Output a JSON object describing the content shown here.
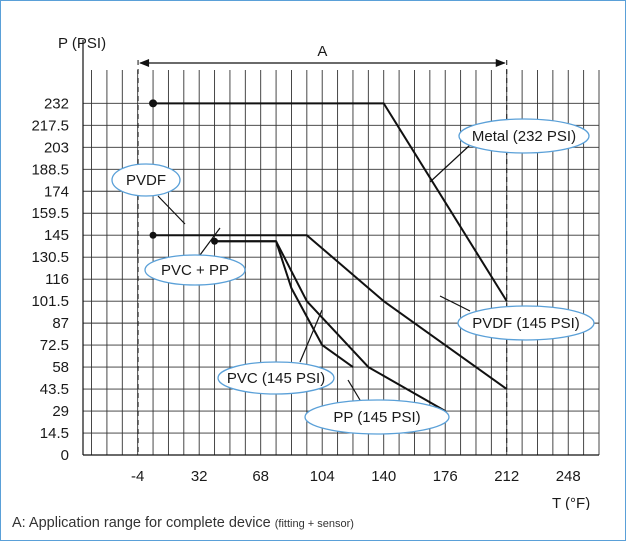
{
  "chart_data": {
    "type": "line",
    "ylabel": "P (PSI)",
    "xlabel": "T (°F)",
    "x_ticks": [
      -4,
      32,
      68,
      104,
      140,
      176,
      212,
      248
    ],
    "y_ticks": [
      0,
      14.5,
      29,
      43.5,
      58,
      72.5,
      87,
      101.5,
      116,
      130.5,
      145,
      159.5,
      174,
      188.5,
      203,
      217.5,
      232
    ],
    "x_tick_labels": [
      "-4",
      "32",
      "68",
      "104",
      "140",
      "176",
      "212",
      "248"
    ],
    "y_tick_labels": [
      "0",
      "14.5",
      "29",
      "43.5",
      "58",
      "72.5",
      "87",
      "101.5",
      "116",
      "130.5",
      "145",
      "159.5",
      "174",
      "188.5",
      "203",
      "217.5",
      "232"
    ],
    "xlim": [
      -36,
      266
    ],
    "ylim": [
      0,
      254
    ],
    "grid": true,
    "range_annotation": {
      "label": "A",
      "from": 5,
      "to": 212
    },
    "series": [
      {
        "name": "Metal (232 PSI)",
        "x": [
          5,
          140,
          212
        ],
        "y": [
          232,
          232,
          101.5
        ]
      },
      {
        "name": "PVDF (145 PSI)",
        "x": [
          5,
          95,
          140,
          212
        ],
        "y": [
          145,
          145,
          101.5,
          43.5
        ]
      },
      {
        "name": "PVC (145 PSI)",
        "x": [
          41,
          77,
          86,
          104,
          122
        ],
        "y": [
          141,
          141,
          110,
          72.5,
          58
        ]
      },
      {
        "name": "PP (145 PSI)",
        "x": [
          41,
          77,
          95,
          131,
          176
        ],
        "y": [
          141,
          141,
          101.5,
          58,
          29
        ]
      }
    ],
    "annotations": [
      {
        "text": "Metal (232 PSI)",
        "series": 0
      },
      {
        "text": "PVDF",
        "series": 1
      },
      {
        "text": "PVC + PP",
        "series": 2
      },
      {
        "text": "PVDF (145 PSI)",
        "series": 1
      },
      {
        "text": "PVC (145 PSI)",
        "series": 2
      },
      {
        "text": "PP (145 PSI)",
        "series": 3
      }
    ]
  },
  "footnote": {
    "main": "A: Application range for complete device ",
    "small": "(fitting + sensor)"
  },
  "colors": {
    "frame": "#5aa0d8",
    "callout": "#5aa0d8",
    "grid": "#333333",
    "line": "#111111"
  }
}
